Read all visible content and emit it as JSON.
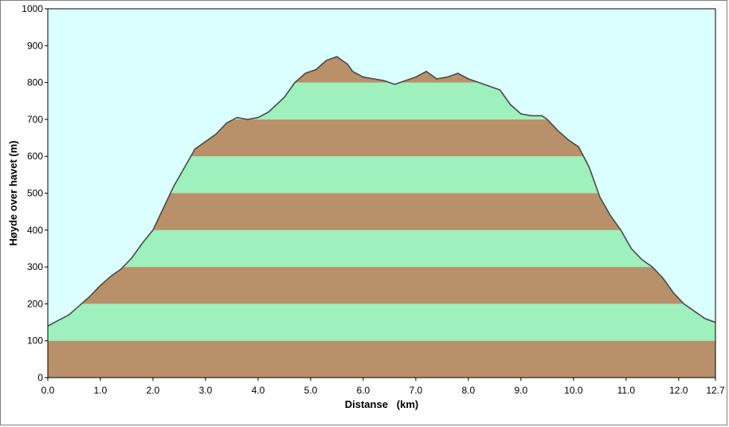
{
  "chart_data": {
    "type": "area",
    "xlabel": "Distanse   (km)",
    "ylabel": "Høyde over havet (m)",
    "xlim": [
      0,
      12.7
    ],
    "ylim": [
      0,
      1000
    ],
    "x_ticks": [
      0,
      1,
      2,
      3,
      4,
      5,
      6,
      7,
      8,
      9,
      10,
      11,
      12,
      12.7
    ],
    "x_tick_labels": [
      "0.0",
      "1.0",
      "2.0",
      "3.0",
      "4.0",
      "5.0",
      "6.0",
      "7.0",
      "8.0",
      "9.0",
      "10.0",
      "11.0",
      "12.0",
      "12.7"
    ],
    "y_ticks": [
      0,
      100,
      200,
      300,
      400,
      500,
      600,
      700,
      800,
      900,
      1000
    ],
    "y_tick_labels": [
      "0",
      "100",
      "200",
      "300",
      "400",
      "500",
      "600",
      "700",
      "800",
      "900",
      "1000"
    ],
    "band_step": 100,
    "colors": {
      "background": "#dbffff",
      "band_brown": "#b8916a",
      "band_green": "#9ef0bd",
      "profile_line": "#4a4a4a"
    },
    "series": [
      {
        "x": [
          0,
          0.2,
          0.4,
          0.6,
          0.8,
          1.0,
          1.2,
          1.4,
          1.6,
          1.8,
          2.0,
          2.2,
          2.4,
          2.6,
          2.8,
          3.0,
          3.2,
          3.4,
          3.6,
          3.8,
          4.0,
          4.2,
          4.5,
          4.7,
          4.9,
          5.1,
          5.3,
          5.5,
          5.7,
          5.8,
          6.0,
          6.2,
          6.4,
          6.6,
          6.8,
          7.0,
          7.2,
          7.4,
          7.6,
          7.8,
          8.0,
          8.2,
          8.4,
          8.6,
          8.8,
          9.0,
          9.2,
          9.4,
          9.5,
          9.7,
          9.9,
          10.1,
          10.3,
          10.5,
          10.7,
          10.9,
          11.1,
          11.3,
          11.5,
          11.7,
          11.9,
          12.1,
          12.3,
          12.5,
          12.7
        ],
        "y": [
          140,
          155,
          170,
          195,
          220,
          250,
          275,
          295,
          325,
          365,
          400,
          460,
          520,
          570,
          620,
          640,
          660,
          690,
          705,
          700,
          705,
          720,
          760,
          800,
          825,
          835,
          860,
          870,
          850,
          830,
          815,
          810,
          805,
          795,
          805,
          815,
          830,
          810,
          815,
          825,
          810,
          800,
          790,
          780,
          740,
          715,
          710,
          710,
          700,
          670,
          645,
          625,
          570,
          490,
          440,
          400,
          350,
          320,
          300,
          270,
          230,
          200,
          180,
          160,
          150
        ]
      }
    ]
  }
}
